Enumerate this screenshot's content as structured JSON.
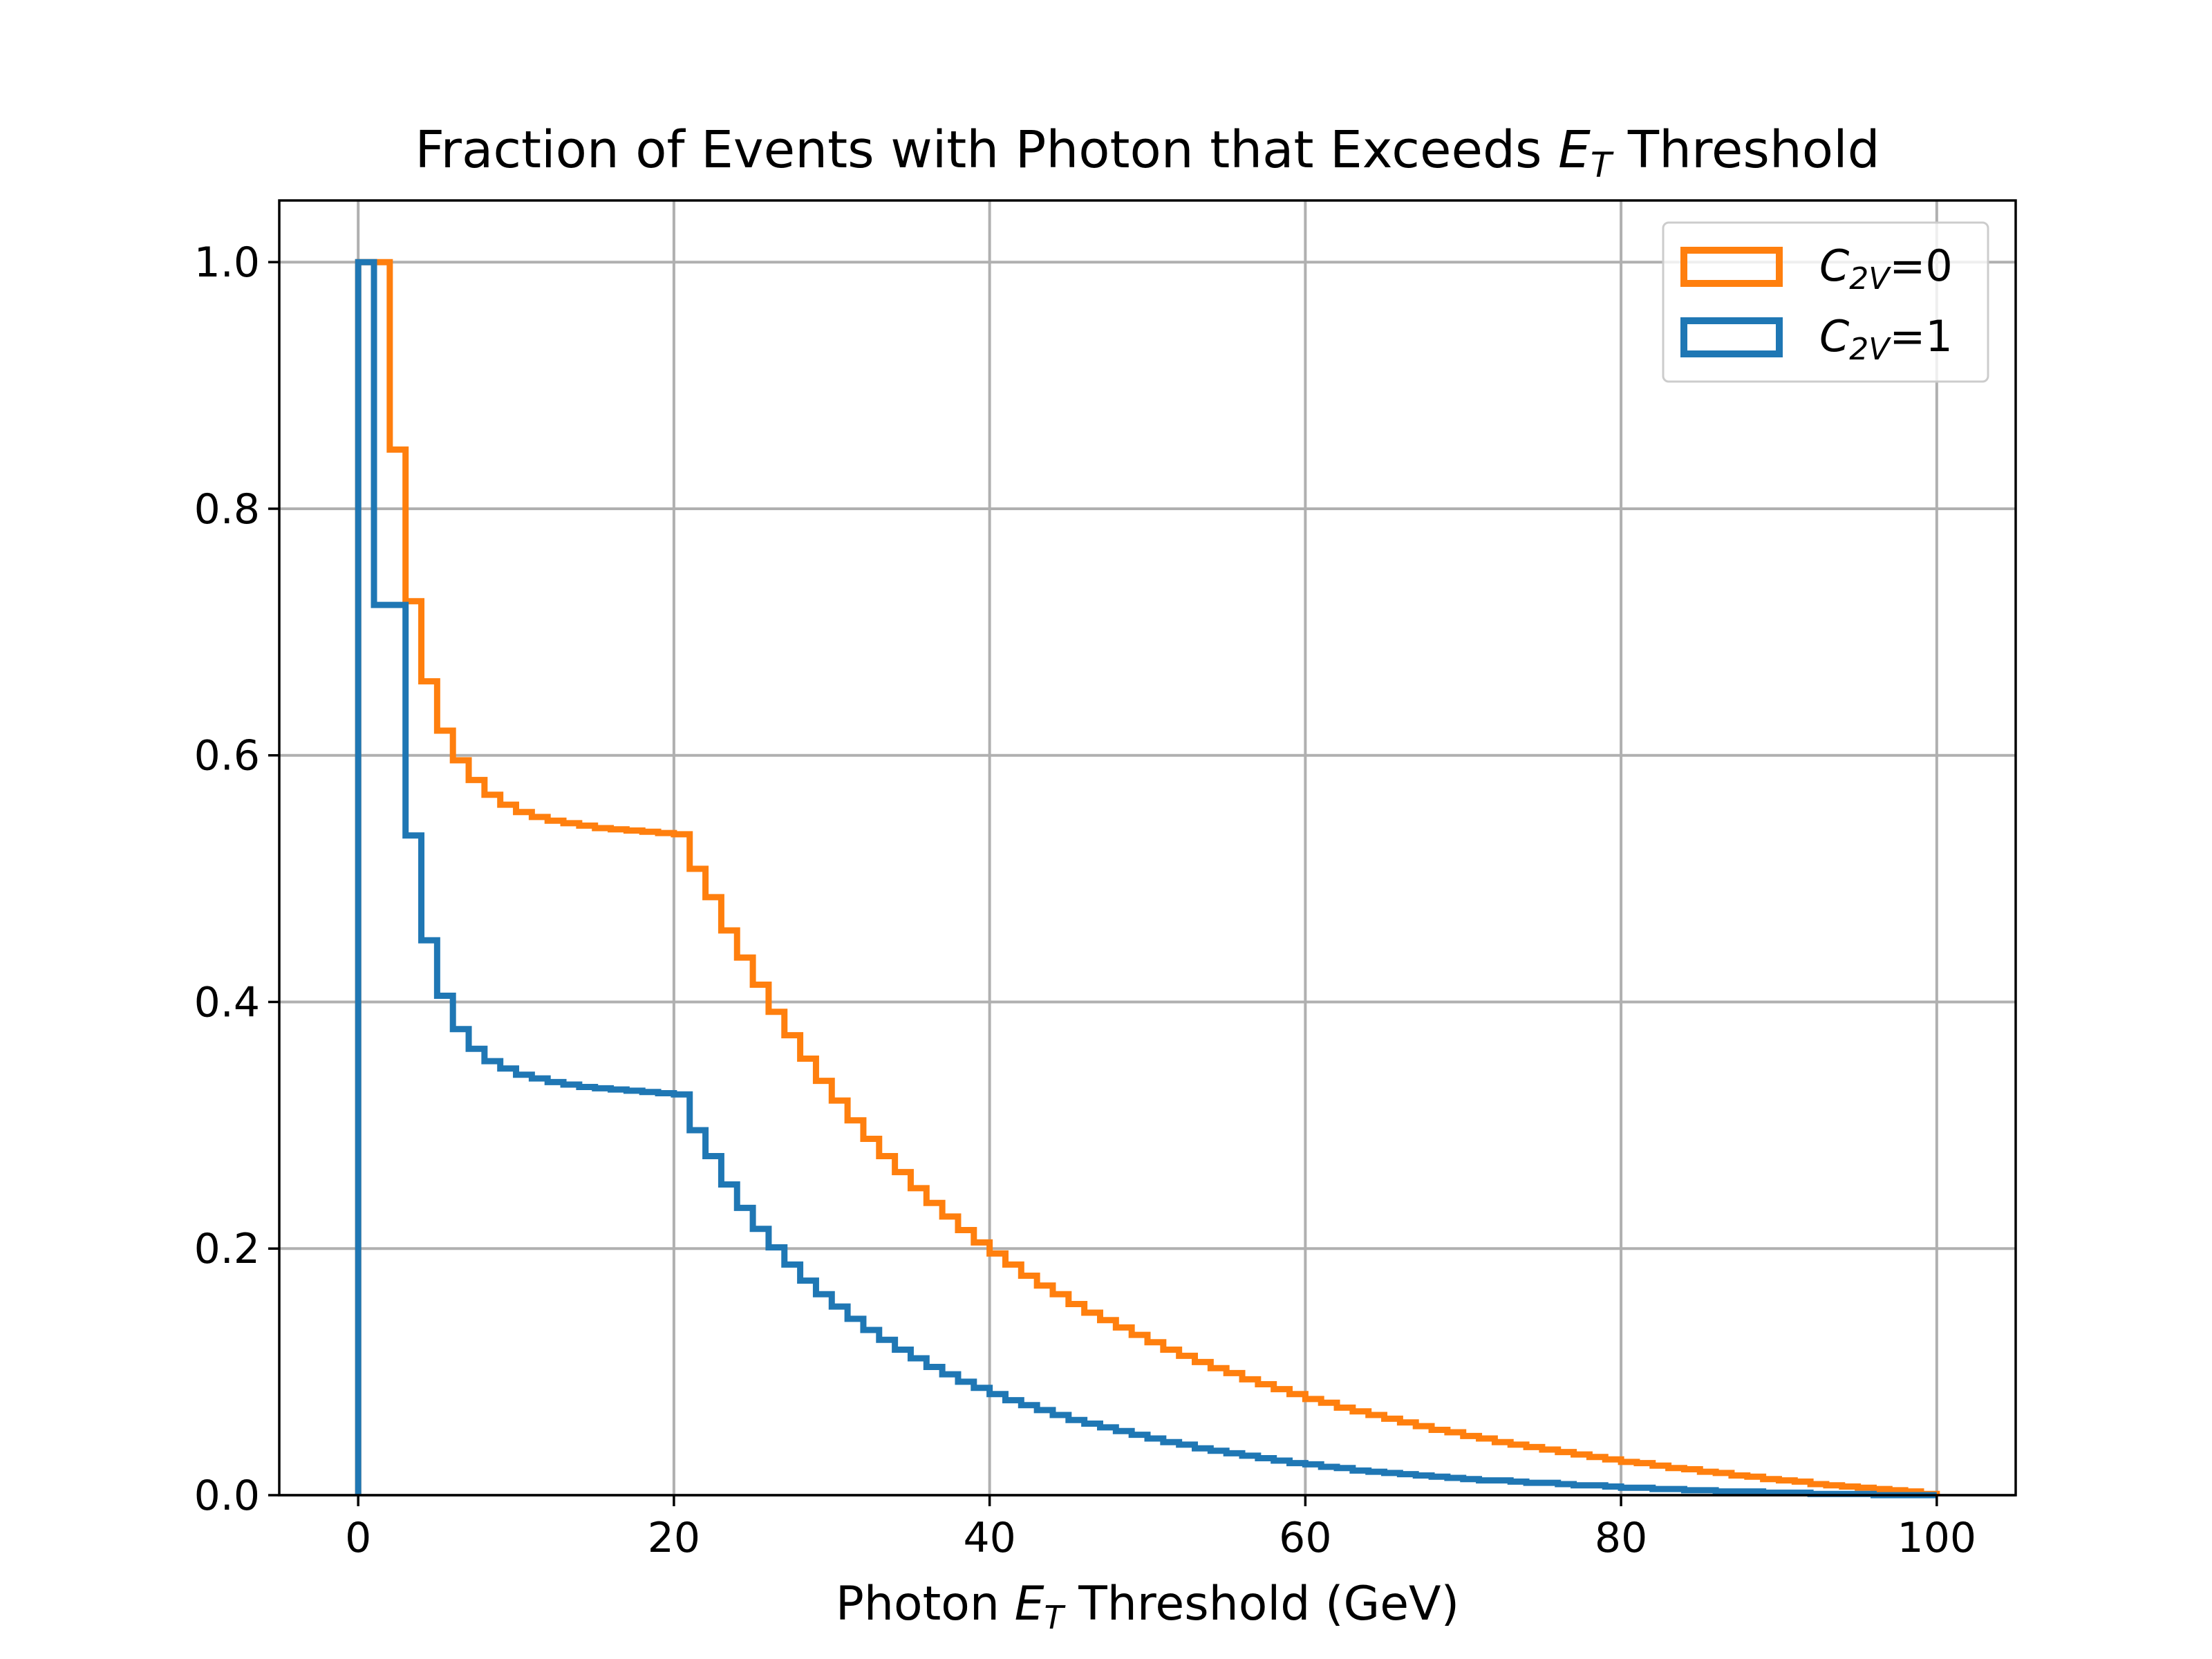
{
  "chart_data": {
    "type": "histogram-step",
    "title": {
      "prefix": "Fraction of Events with Photon that Exceeds ",
      "math_base": "E",
      "math_sub": "T",
      "suffix": " Threshold"
    },
    "xlabel": {
      "prefix": "Photon ",
      "math_base": "E",
      "math_sub": "T",
      "suffix": " Threshold (GeV)"
    },
    "ylabel": "",
    "xlim": [
      -5,
      105
    ],
    "ylim": [
      0.0,
      1.05
    ],
    "xticks": [
      0,
      20,
      40,
      60,
      80,
      100
    ],
    "yticks": [
      0.0,
      0.2,
      0.4,
      0.6,
      0.8,
      1.0
    ],
    "xtick_labels": [
      "0",
      "20",
      "40",
      "60",
      "80",
      "100"
    ],
    "ytick_labels": [
      "0.0",
      "0.2",
      "0.4",
      "0.6",
      "0.8",
      "1.0"
    ],
    "grid": true,
    "legend_position": "top-right",
    "bin_start": 0,
    "bin_width": 1,
    "series": [
      {
        "name": "C2V=0",
        "label_base": "C",
        "label_sub": "2V",
        "label_suffix": "=0",
        "color": "#ff7f0e",
        "values": [
          1.0,
          1.0,
          0.848,
          0.725,
          0.66,
          0.62,
          0.596,
          0.58,
          0.568,
          0.56,
          0.554,
          0.55,
          0.547,
          0.545,
          0.543,
          0.541,
          0.54,
          0.539,
          0.538,
          0.537,
          0.536,
          0.508,
          0.485,
          0.458,
          0.436,
          0.414,
          0.392,
          0.373,
          0.354,
          0.336,
          0.32,
          0.304,
          0.289,
          0.275,
          0.262,
          0.249,
          0.237,
          0.226,
          0.215,
          0.205,
          0.196,
          0.187,
          0.178,
          0.17,
          0.163,
          0.155,
          0.148,
          0.142,
          0.136,
          0.13,
          0.124,
          0.118,
          0.113,
          0.108,
          0.103,
          0.099,
          0.094,
          0.09,
          0.086,
          0.082,
          0.078,
          0.075,
          0.071,
          0.068,
          0.065,
          0.062,
          0.059,
          0.056,
          0.053,
          0.051,
          0.048,
          0.046,
          0.043,
          0.041,
          0.039,
          0.037,
          0.035,
          0.033,
          0.031,
          0.029,
          0.027,
          0.026,
          0.024,
          0.022,
          0.021,
          0.019,
          0.018,
          0.016,
          0.015,
          0.013,
          0.012,
          0.011,
          0.009,
          0.008,
          0.007,
          0.006,
          0.005,
          0.004,
          0.003,
          0.001
        ]
      },
      {
        "name": "C2V=1",
        "label_base": "C",
        "label_sub": "2V",
        "label_suffix": "=1",
        "color": "#1f77b4",
        "values": [
          1.0,
          0.722,
          0.722,
          0.535,
          0.45,
          0.405,
          0.378,
          0.362,
          0.352,
          0.346,
          0.341,
          0.338,
          0.335,
          0.333,
          0.331,
          0.33,
          0.329,
          0.328,
          0.327,
          0.326,
          0.325,
          0.296,
          0.275,
          0.252,
          0.233,
          0.216,
          0.201,
          0.187,
          0.174,
          0.163,
          0.153,
          0.143,
          0.134,
          0.126,
          0.118,
          0.111,
          0.104,
          0.098,
          0.092,
          0.087,
          0.082,
          0.077,
          0.073,
          0.069,
          0.065,
          0.061,
          0.058,
          0.055,
          0.052,
          0.049,
          0.046,
          0.043,
          0.041,
          0.038,
          0.036,
          0.034,
          0.032,
          0.03,
          0.028,
          0.026,
          0.025,
          0.023,
          0.022,
          0.02,
          0.019,
          0.018,
          0.017,
          0.016,
          0.015,
          0.014,
          0.013,
          0.012,
          0.012,
          0.011,
          0.01,
          0.01,
          0.009,
          0.008,
          0.008,
          0.007,
          0.006,
          0.006,
          0.005,
          0.005,
          0.004,
          0.004,
          0.003,
          0.003,
          0.003,
          0.002,
          0.002,
          0.002,
          0.001,
          0.001,
          0.001,
          0.001,
          0.0,
          0.0,
          0.0,
          0.0
        ]
      }
    ]
  }
}
